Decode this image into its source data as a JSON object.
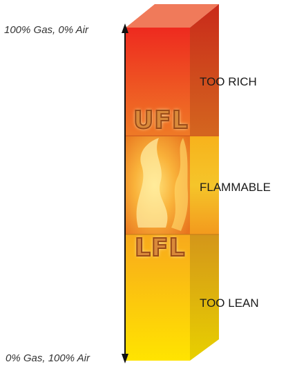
{
  "diagram": {
    "top_label": "100% Gas, 0% Air",
    "bottom_label": "0% Gas, 100% Air",
    "zones": [
      {
        "name": "too-rich",
        "label": "TOO RICH"
      },
      {
        "name": "flammable",
        "label": "FLAMMABLE"
      },
      {
        "name": "too-lean",
        "label": "TOO LEAN"
      }
    ],
    "limits": {
      "upper": "UFL",
      "lower": "LFL"
    },
    "colors": {
      "rich_top": "#ee2a1f",
      "rich_bottom": "#ef7a26",
      "flame_core": "#ffe27a",
      "flame_edge": "#f08a24",
      "lean_top": "#f8a91c",
      "lean_bottom": "#ffe400",
      "arrow": "#111111"
    }
  }
}
